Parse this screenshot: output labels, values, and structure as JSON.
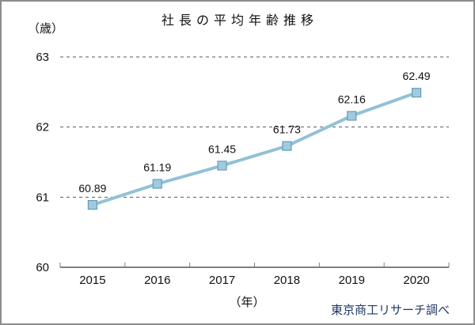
{
  "chart_data": {
    "type": "line",
    "title": "社長の平均年齢推移",
    "y_unit_label": "（歳）",
    "x_unit_label": "（年）",
    "categories": [
      "2015",
      "2016",
      "2017",
      "2018",
      "2019",
      "2020"
    ],
    "values": [
      60.89,
      61.19,
      61.45,
      61.73,
      62.16,
      62.49
    ],
    "data_labels": [
      "60.89",
      "61.19",
      "61.45",
      "61.73",
      "62.16",
      "62.49"
    ],
    "y_ticks": [
      60,
      61,
      62,
      63
    ],
    "ylim": [
      60,
      63
    ],
    "grid": "horizontal-dashed",
    "legend": "none",
    "line_color": "#92c1d6",
    "marker_fill": "#a2cadd",
    "marker_border": "#5d9ec0",
    "gridline_color": "#595959",
    "axis_color": "#7f7f7f",
    "label_color": "#111111"
  },
  "footer": {
    "source": "東京商工リサーチ調べ"
  }
}
